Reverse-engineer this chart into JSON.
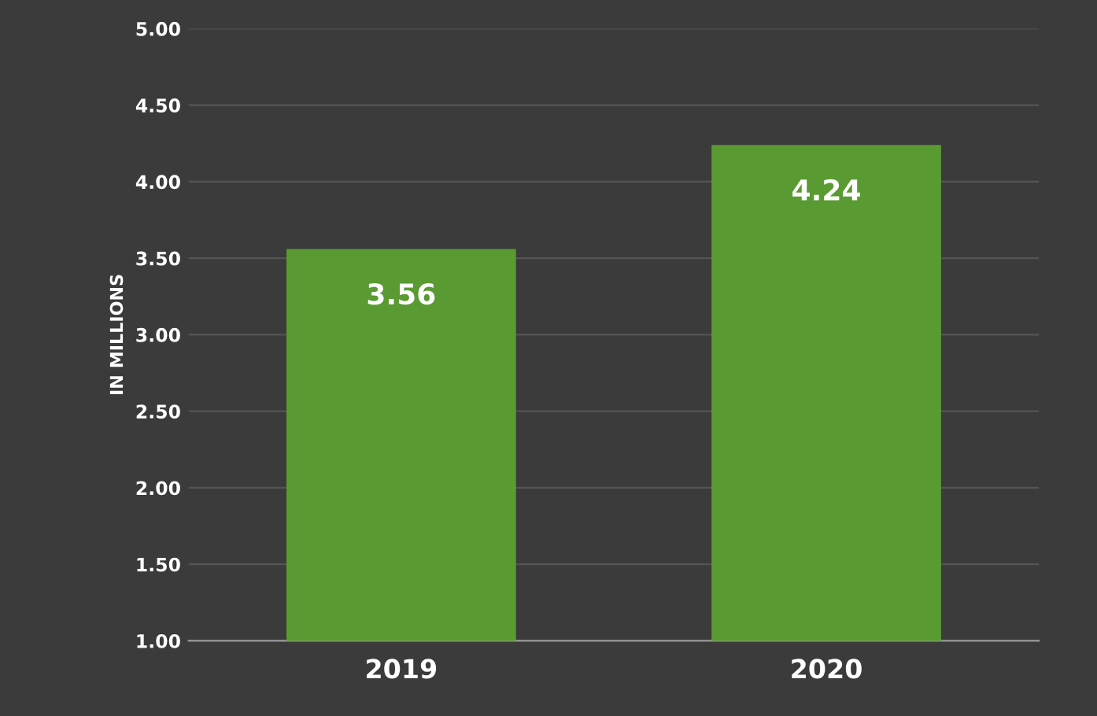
{
  "chart_data": {
    "type": "bar",
    "ylabel": "IN MILLIONS",
    "categories": [
      "2019",
      "2020"
    ],
    "values": [
      3.56,
      4.24
    ],
    "color": "#5a9a32",
    "ylim": [
      1,
      5
    ],
    "yticks": [
      {
        "value": 1,
        "label": "1.00"
      },
      {
        "value": 1.5,
        "label": "1.50"
      },
      {
        "value": 2,
        "label": "2.00"
      },
      {
        "value": 2.5,
        "label": "2.50"
      },
      {
        "value": 3,
        "label": "3.00"
      },
      {
        "value": 3.5,
        "label": "3.50"
      },
      {
        "value": 4,
        "label": "4.00"
      },
      {
        "value": 4.5,
        "label": "4.50"
      },
      {
        "value": 5,
        "label": "5.00"
      }
    ],
    "grid": "y",
    "data_labels": true
  }
}
